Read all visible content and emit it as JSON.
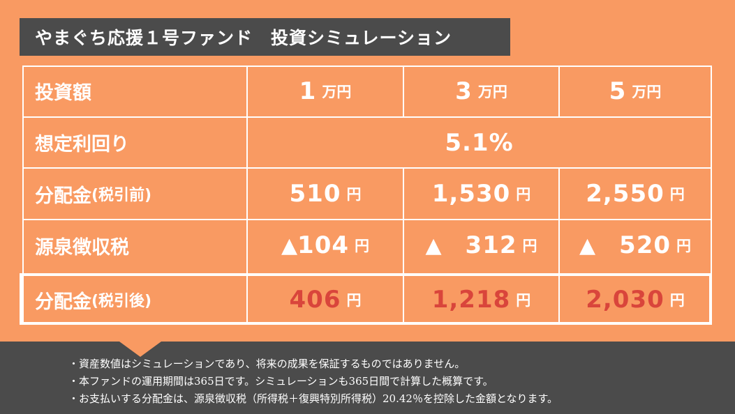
{
  "title": "やまぐち応援１号ファンド　投資シミュレーション",
  "rows": {
    "investment": {
      "label": "投資額",
      "values": [
        "1",
        "3",
        "5"
      ],
      "unit": "万円"
    },
    "yield": {
      "label": "想定利回り",
      "value": "5.1%"
    },
    "pre_tax": {
      "label": "分配金",
      "label_note": "(税引前)",
      "values": [
        "510",
        "1,530",
        "2,550"
      ],
      "unit": "円"
    },
    "withholding": {
      "label": "源泉徴収税",
      "marker": "▲",
      "values": [
        "104",
        "312",
        "520"
      ],
      "unit": "円"
    },
    "after_tax": {
      "label": "分配金",
      "label_note": "(税引後)",
      "values": [
        "406",
        "1,218",
        "2,030"
      ],
      "unit": "円"
    }
  },
  "notes": [
    "・資産数値はシミュレーションであり、将来の成果を保証するものではありません。",
    "・本ファンドの運用期間は365日です。シミュレーションも365日間で計算した概算です。",
    "・お支払いする分配金は、源泉徴収税（所得税＋復興特別所得税）20.42％を控除した金額となります。"
  ],
  "colors": {
    "background": "#F99A62",
    "dark": "#4B4B4B",
    "accent_red": "#D9453B",
    "text": "#FFFFFF"
  }
}
